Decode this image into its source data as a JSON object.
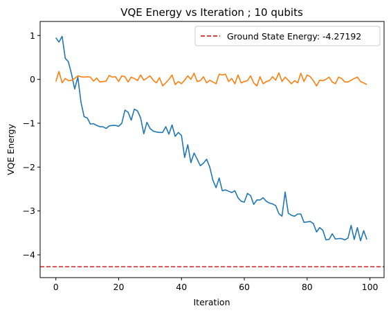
{
  "chart_data": {
    "type": "line",
    "title": "VQE Energy vs Iteration ; 10 qubits",
    "xlabel": "Iteration",
    "ylabel": "VQE Energy",
    "xlim": [
      -5,
      104.5
    ],
    "ylim": [
      -4.52,
      1.32
    ],
    "xticks": [
      0,
      20,
      40,
      60,
      80,
      100
    ],
    "yticks": [
      1,
      0,
      -1,
      -2,
      -3,
      -4
    ],
    "grid": false,
    "legend_position": "top-right",
    "colors": {
      "series_blue": "#1f77b4",
      "series_orange": "#ff7f0e",
      "reference": "#d62728"
    },
    "reference_line": {
      "name": "Ground State Energy: -4.27192",
      "y": -4.27192,
      "style": "dashed"
    },
    "series": [
      {
        "color": "#1f77b4",
        "x": [
          0,
          1,
          2,
          3,
          4,
          5,
          6,
          7,
          8,
          9,
          10,
          11,
          12,
          13,
          14,
          15,
          16,
          17,
          18,
          19,
          20,
          21,
          22,
          23,
          24,
          25,
          26,
          27,
          28,
          29,
          30,
          31,
          32,
          33,
          34,
          35,
          36,
          37,
          38,
          39,
          40,
          41,
          42,
          43,
          44,
          45,
          46,
          47,
          48,
          49,
          50,
          51,
          52,
          53,
          54,
          55,
          56,
          57,
          58,
          59,
          60,
          61,
          62,
          63,
          64,
          65,
          66,
          67,
          68,
          69,
          70,
          71,
          72,
          73,
          74,
          75,
          76,
          77,
          78,
          79,
          80,
          81,
          82,
          83,
          84,
          85,
          86,
          87,
          88,
          89,
          90,
          91,
          92,
          93,
          94,
          95,
          96,
          97,
          98,
          99
        ],
        "values": [
          0.95,
          0.85,
          0.98,
          0.48,
          0.4,
          0.12,
          -0.22,
          0.05,
          -0.52,
          -0.85,
          -0.88,
          -1.02,
          -1.01,
          -1.05,
          -1.08,
          -1.08,
          -1.12,
          -1.06,
          -1.05,
          -1.05,
          -1.07,
          -1.0,
          -0.7,
          -0.75,
          -0.93,
          -0.68,
          -0.72,
          -0.88,
          -1.24,
          -0.98,
          -1.12,
          -1.18,
          -1.2,
          -1.21,
          -1.21,
          -1.08,
          -1.25,
          -1.04,
          -1.3,
          -1.21,
          -1.28,
          -1.78,
          -1.49,
          -1.9,
          -1.68,
          -1.82,
          -1.97,
          -1.91,
          -1.82,
          -2.0,
          -2.3,
          -2.47,
          -2.25,
          -2.54,
          -2.52,
          -2.55,
          -2.58,
          -2.54,
          -2.7,
          -2.78,
          -2.8,
          -2.6,
          -2.65,
          -2.85,
          -2.75,
          -2.75,
          -2.7,
          -2.78,
          -2.82,
          -2.84,
          -2.88,
          -3.06,
          -3.12,
          -2.57,
          -3.05,
          -3.1,
          -3.12,
          -3.07,
          -3.07,
          -3.26,
          -3.25,
          -3.24,
          -3.29,
          -3.48,
          -3.38,
          -3.44,
          -3.66,
          -3.65,
          -3.52,
          -3.64,
          -3.63,
          -3.63,
          -3.66,
          -3.62,
          -3.33,
          -3.65,
          -3.38,
          -3.68,
          -3.45,
          -3.65
        ]
      },
      {
        "color": "#ff7f0e",
        "x": [
          0,
          1,
          2,
          3,
          4,
          5,
          6,
          7,
          8,
          9,
          10,
          11,
          12,
          13,
          14,
          15,
          16,
          17,
          18,
          19,
          20,
          21,
          22,
          23,
          24,
          25,
          26,
          27,
          28,
          29,
          30,
          31,
          32,
          33,
          34,
          35,
          36,
          37,
          38,
          39,
          40,
          41,
          42,
          43,
          44,
          45,
          46,
          47,
          48,
          49,
          50,
          51,
          52,
          53,
          54,
          55,
          56,
          57,
          58,
          59,
          60,
          61,
          62,
          63,
          64,
          65,
          66,
          67,
          68,
          69,
          70,
          71,
          72,
          73,
          74,
          75,
          76,
          77,
          78,
          79,
          80,
          81,
          82,
          83,
          84,
          85,
          86,
          87,
          88,
          89,
          90,
          91,
          92,
          93,
          94,
          95,
          96,
          97,
          98,
          99
        ],
        "values": [
          -0.05,
          0.18,
          -0.08,
          0.02,
          -0.03,
          -0.02,
          0.02,
          0.08,
          0.06,
          0.05,
          0.06,
          0.05,
          -0.04,
          0.03,
          -0.06,
          -0.05,
          -0.04,
          0.09,
          0.05,
          0.06,
          -0.05,
          0.08,
          0.06,
          -0.06,
          0.05,
          0.02,
          -0.03,
          0.1,
          -0.02,
          0.03,
          0.08,
          -0.02,
          -0.08,
          0.04,
          -0.15,
          -0.08,
          0.0,
          0.1,
          -0.12,
          -0.05,
          -0.1,
          -0.02,
          0.08,
          0.0,
          0.14,
          -0.05,
          -0.03,
          0.06,
          -0.08,
          -0.02,
          -0.06,
          -0.1,
          0.12,
          0.1,
          0.12,
          -0.05,
          0.02,
          -0.1,
          0.1,
          -0.08,
          -0.05,
          -0.03,
          0.08,
          -0.08,
          -0.15,
          0.06,
          -0.1,
          -0.05,
          -0.03,
          0.06,
          -0.02,
          0.15,
          -0.05,
          0.05,
          -0.02,
          -0.1,
          -0.03,
          -0.08,
          0.14,
          -0.05,
          0.1,
          0.06,
          -0.03,
          -0.15,
          -0.02,
          -0.03,
          0.0,
          0.05,
          -0.06,
          -0.1,
          0.05,
          0.02,
          -0.06,
          -0.06,
          -0.02,
          0.02,
          0.05,
          -0.05,
          -0.08,
          -0.12
        ]
      }
    ]
  }
}
